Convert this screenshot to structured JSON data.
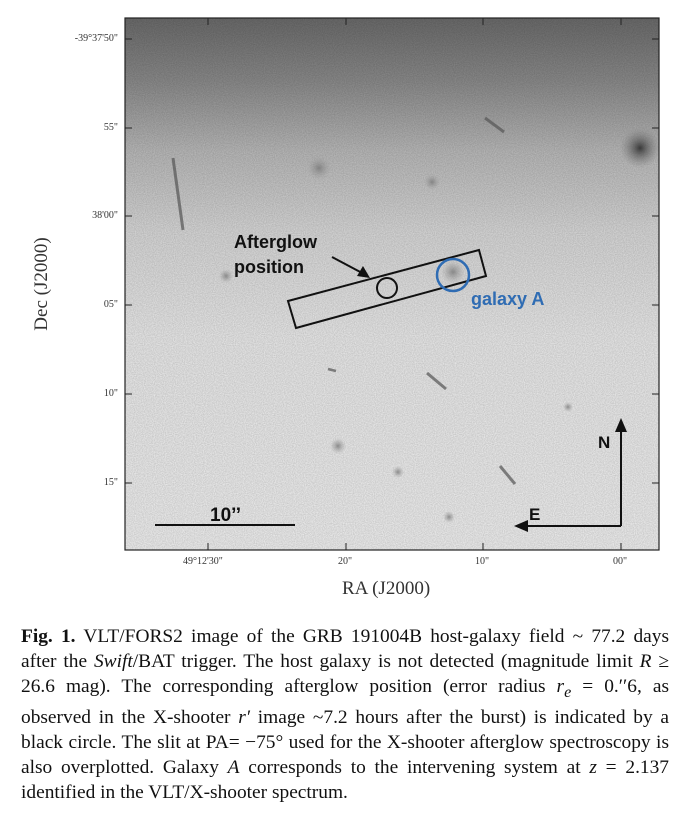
{
  "figure": {
    "image_description_free": true,
    "y_ticks": [
      "-39°37'50\"",
      "55\"",
      "38'00\"",
      "05\"",
      "10\"",
      "15\""
    ],
    "x_ticks": [
      "49°12'30\"",
      "20\"",
      "10\"",
      "00\""
    ],
    "y_axis_title": "Dec (J2000)",
    "x_axis_title": "RA (J2000)",
    "annotations": {
      "afterglow_line1": "Afterglow",
      "afterglow_line2": "position",
      "galaxy": "galaxy A",
      "scale_bar": "10’’",
      "north": "N",
      "east": "E"
    },
    "colors": {
      "galaxy_circle": "#2f6cb3",
      "galaxy_label": "#2f6cb3"
    }
  },
  "caption": {
    "label": "Fig. 1.",
    "t1": " VLT/FORS2 image of the GRB 191004B host-galaxy field ~ 77.2 days after the ",
    "swift": "Swift",
    "t2": "/BAT trigger. The host galaxy is not detected (magnitude limit ",
    "R": "R",
    "t3": " ≥ 26.6 mag). The corresponding afterglow position (error radius ",
    "re": "r",
    "re_sub": "e",
    "t4": " = 0.′′6, as observed in the X-shooter ",
    "rprime": "r′",
    "t5": " image ~7.2 hours after the burst) is indicated by a black circle. The slit at PA= −75° used for the X-shooter afterglow spectroscopy is also overplotted. Galaxy ",
    "A": "A",
    "t6": " corresponds to the intervening system at ",
    "z": "z",
    "t7": " = 2.137 identified in the VLT/X-shooter spectrum."
  }
}
